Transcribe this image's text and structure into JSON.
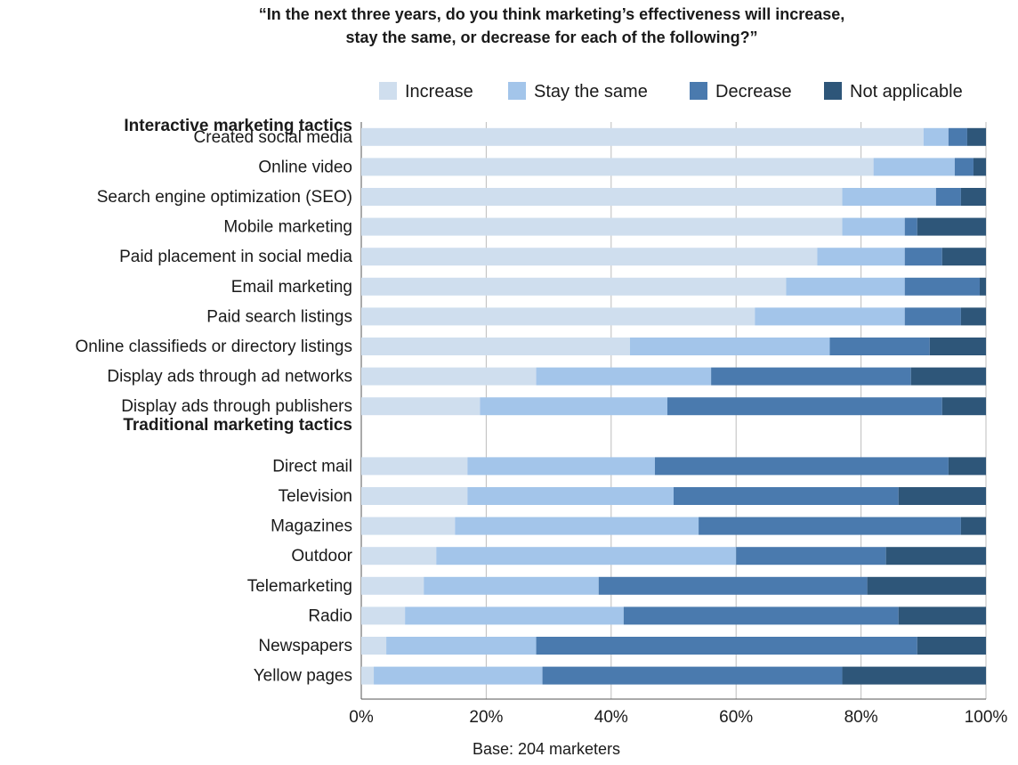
{
  "chart_data": {
    "type": "bar",
    "orientation": "horizontal",
    "stacked": true,
    "title_lines": [
      "“In the next three years, do you think marketing’s effectiveness will increase,",
      "stay the same, or decrease for each of the following?”"
    ],
    "note": "Base: 204 marketers",
    "x_ticks": [
      "0%",
      "20%",
      "40%",
      "60%",
      "80%",
      "100%"
    ],
    "xlim": [
      0,
      100
    ],
    "grid": true,
    "legend_position": "top",
    "series": [
      {
        "name": "Increase",
        "color": "#cfdeee"
      },
      {
        "name": "Stay the same",
        "color": "#a3c5ea"
      },
      {
        "name": "Decrease",
        "color": "#4a7aae"
      },
      {
        "name": "Not applicable",
        "color": "#2e5679"
      }
    ],
    "groups": [
      {
        "label": "Interactive marketing tactics",
        "rows": [
          {
            "category": "Created social media",
            "values": [
              90,
              4,
              3,
              3
            ]
          },
          {
            "category": "Online video",
            "values": [
              82,
              13,
              3,
              2
            ]
          },
          {
            "category": "Search engine optimization (SEO)",
            "values": [
              77,
              15,
              4,
              4
            ]
          },
          {
            "category": "Mobile marketing",
            "values": [
              77,
              10,
              2,
              11
            ]
          },
          {
            "category": "Paid placement in social media",
            "values": [
              73,
              14,
              6,
              7
            ]
          },
          {
            "category": "Email marketing",
            "values": [
              68,
              19,
              12,
              1
            ]
          },
          {
            "category": "Paid search listings",
            "values": [
              63,
              24,
              9,
              4
            ]
          },
          {
            "category": "Online classifieds or directory listings",
            "values": [
              43,
              32,
              16,
              9
            ]
          },
          {
            "category": "Display ads through ad networks",
            "values": [
              28,
              28,
              32,
              12
            ]
          },
          {
            "category": "Display ads through publishers",
            "values": [
              19,
              30,
              44,
              7
            ]
          }
        ]
      },
      {
        "label": "Traditional marketing tactics",
        "rows": [
          {
            "category": "Direct mail",
            "values": [
              17,
              30,
              47,
              6
            ]
          },
          {
            "category": "Television",
            "values": [
              17,
              33,
              36,
              14
            ]
          },
          {
            "category": "Magazines",
            "values": [
              15,
              39,
              42,
              4
            ]
          },
          {
            "category": "Outdoor",
            "values": [
              12,
              48,
              24,
              16
            ]
          },
          {
            "category": "Telemarketing",
            "values": [
              10,
              28,
              43,
              19
            ]
          },
          {
            "category": "Radio",
            "values": [
              7,
              35,
              44,
              14
            ]
          },
          {
            "category": "Newspapers",
            "values": [
              4,
              24,
              61,
              11
            ]
          },
          {
            "category": "Yellow pages",
            "values": [
              2,
              27,
              48,
              23
            ]
          }
        ]
      }
    ]
  }
}
